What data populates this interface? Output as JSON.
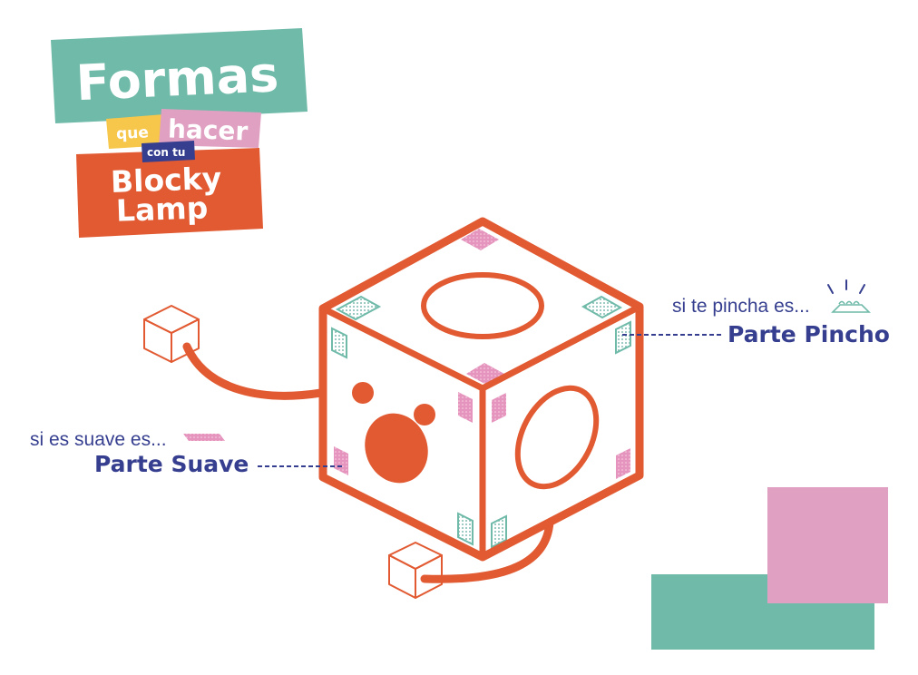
{
  "colors": {
    "orange": "#e15a32",
    "teal": "#6fbaa9",
    "pink": "#e0a0c2",
    "yellow": "#f6c74a",
    "navy": "#363f8f",
    "white": "#ffffff"
  },
  "title": {
    "line1": "Formas",
    "word_que": "que",
    "word_hacer": "hacer",
    "word_con_tu": "con tu",
    "line_blocky": "Blocky",
    "line_lamp": "Lamp"
  },
  "labels": {
    "spiky_hint": "si te pincha es...",
    "spiky_part": "Parte Pincho",
    "soft_hint": "si es suave es...",
    "soft_part": "Parte Suave"
  },
  "icons": [
    "small-cube-icon",
    "velcro-hook-patch-icon",
    "velcro-loop-patch-icon",
    "prick-icon"
  ]
}
